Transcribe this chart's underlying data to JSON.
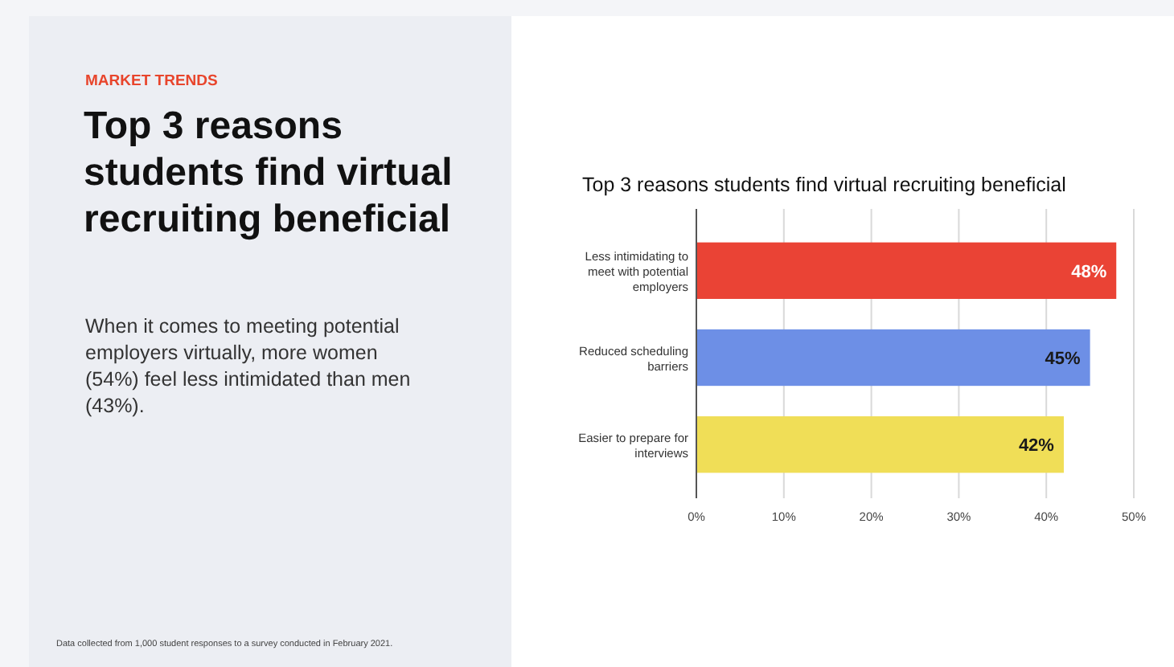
{
  "chart_data": {
    "type": "bar",
    "orientation": "horizontal",
    "title": "Top 3 reasons students find virtual recruiting beneficial",
    "categories": [
      "Less intimidating to meet with potential employers",
      "Reduced scheduling barriers",
      "Easier to prepare for interviews"
    ],
    "values": [
      48,
      45,
      42
    ],
    "colors": [
      "#ea4335",
      "#6d8fe6",
      "#f0de57"
    ],
    "value_labels": [
      "48%",
      "45%",
      "42%"
    ],
    "xlim": [
      0,
      50
    ],
    "xticks": [
      {
        "value": 0,
        "label": "0%"
      },
      {
        "value": 10,
        "label": "10%"
      },
      {
        "value": 20,
        "label": "20%"
      },
      {
        "value": 30,
        "label": "30%"
      },
      {
        "value": 40,
        "label": "40%"
      },
      {
        "value": 50,
        "label": "50%"
      }
    ],
    "grid": "x",
    "annotations": [
      "MARKET TRENDS",
      "Top 3 reasons students find virtual recruiting beneficial",
      "When it comes to meeting potential employers virtually, more women (54%) feel less intimidated than men (43%).",
      "Data collected from 1,000 student responses to a survey conducted in February 2021."
    ]
  }
}
